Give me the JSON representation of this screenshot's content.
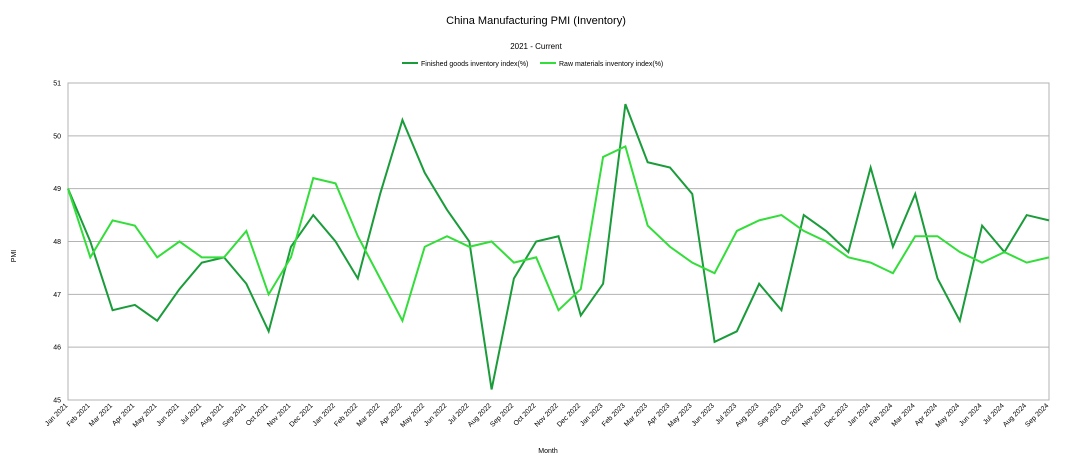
{
  "chart_data": {
    "type": "line",
    "title": "China Manufacturing PMI  (Inventory)",
    "subtitle": "2021 - Current",
    "xlabel": "Month",
    "ylabel": "PMI",
    "ylim": [
      45,
      51
    ],
    "yticks": [
      "45",
      "46",
      "47",
      "48",
      "49",
      "50",
      "51"
    ],
    "grid": true,
    "legend_position": "top",
    "categories": [
      "Jan 2021",
      "Feb 2021",
      "Mar 2021",
      "Apr 2021",
      "May 2021",
      "Jun 2021",
      "Jul 2021",
      "Aug 2021",
      "Sep 2021",
      "Oct 2021",
      "Nov 2021",
      "Dec 2021",
      "Jan 2022",
      "Feb 2022",
      "Mar 2022",
      "Apr 2022",
      "May 2022",
      "Jun 2022",
      "Jul 2022",
      "Aug 2022",
      "Sep 2022",
      "Oct 2022",
      "Nov 2022",
      "Dec 2022",
      "Jan 2023",
      "Feb 2023",
      "Mar 2023",
      "Apr 2023",
      "May 2023",
      "Jun 2023",
      "Jul 2023",
      "Aug 2023",
      "Sep 2023",
      "Oct 2023",
      "Nov 2023",
      "Dec 2023",
      "Jan 2024",
      "Feb 2024",
      "Mar 2024",
      "Apr 2024",
      "May 2024",
      "Jun 2024",
      "Jul 2024",
      "Aug 2024",
      "Sep 2024"
    ],
    "series": [
      {
        "name": "Finished goods inventory index(%)",
        "color": "#1a9c3a",
        "values": [
          49.0,
          48.0,
          46.7,
          46.8,
          46.5,
          47.1,
          47.6,
          47.7,
          47.2,
          46.3,
          47.9,
          48.5,
          48.0,
          47.3,
          48.9,
          50.3,
          49.3,
          48.6,
          48.0,
          45.2,
          47.3,
          48.0,
          48.1,
          46.6,
          47.2,
          50.6,
          49.5,
          49.4,
          48.9,
          46.1,
          46.3,
          47.2,
          46.7,
          48.5,
          48.2,
          47.8,
          49.4,
          47.9,
          48.9,
          47.3,
          46.5,
          48.3,
          47.8,
          48.5,
          48.4
        ]
      },
      {
        "name": "Raw materials inventory index(%)",
        "color": "#33dd3a",
        "values": [
          49.0,
          47.7,
          48.4,
          48.3,
          47.7,
          48.0,
          47.7,
          47.7,
          48.2,
          47.0,
          47.7,
          49.2,
          49.1,
          48.1,
          47.3,
          46.5,
          47.9,
          48.1,
          47.9,
          48.0,
          47.6,
          47.7,
          46.7,
          47.1,
          49.6,
          49.8,
          48.3,
          47.9,
          47.6,
          47.4,
          48.2,
          48.4,
          48.5,
          48.2,
          48.0,
          47.7,
          47.6,
          47.4,
          48.1,
          48.1,
          47.8,
          47.6,
          47.8,
          47.6,
          47.7
        ]
      }
    ]
  }
}
